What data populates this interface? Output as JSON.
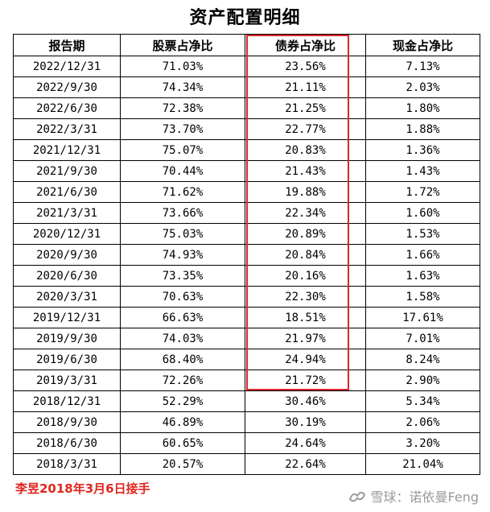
{
  "title": "资产配置明细",
  "headers": [
    "报告期",
    "股票占净比",
    "债券占净比",
    "现金占净比"
  ],
  "rows": [
    [
      "2022/12/31",
      "71.03%",
      "23.56%",
      "7.13%"
    ],
    [
      "2022/9/30",
      "74.34%",
      "21.11%",
      "2.03%"
    ],
    [
      "2022/6/30",
      "72.38%",
      "21.25%",
      "1.80%"
    ],
    [
      "2022/3/31",
      "73.70%",
      "22.77%",
      "1.88%"
    ],
    [
      "2021/12/31",
      "75.07%",
      "20.83%",
      "1.36%"
    ],
    [
      "2021/9/30",
      "70.44%",
      "21.43%",
      "1.43%"
    ],
    [
      "2021/6/30",
      "71.62%",
      "19.88%",
      "1.72%"
    ],
    [
      "2021/3/31",
      "73.66%",
      "22.34%",
      "1.60%"
    ],
    [
      "2020/12/31",
      "75.03%",
      "20.89%",
      "1.53%"
    ],
    [
      "2020/9/30",
      "74.93%",
      "20.84%",
      "1.66%"
    ],
    [
      "2020/6/30",
      "73.35%",
      "20.16%",
      "1.63%"
    ],
    [
      "2020/3/31",
      "70.63%",
      "22.30%",
      "1.58%"
    ],
    [
      "2019/12/31",
      "66.63%",
      "18.51%",
      "17.61%"
    ],
    [
      "2019/9/30",
      "74.03%",
      "21.97%",
      "7.01%"
    ],
    [
      "2019/6/30",
      "68.40%",
      "24.94%",
      "8.24%"
    ],
    [
      "2019/3/31",
      "72.26%",
      "21.72%",
      "2.90%"
    ],
    [
      "2018/12/31",
      "52.29%",
      "30.46%",
      "5.34%"
    ],
    [
      "2018/9/30",
      "46.89%",
      "30.19%",
      "2.06%"
    ],
    [
      "2018/6/30",
      "60.65%",
      "24.64%",
      "3.20%"
    ],
    [
      "2018/3/31",
      "20.57%",
      "22.64%",
      "21.04%"
    ]
  ],
  "note": "李昱2018年3月6日接手",
  "watermark": "雪球：诺依曼Feng",
  "colors": {
    "highlight": "#d9262b",
    "note": "#e0261f",
    "watermark": "#9a9a9a"
  }
}
